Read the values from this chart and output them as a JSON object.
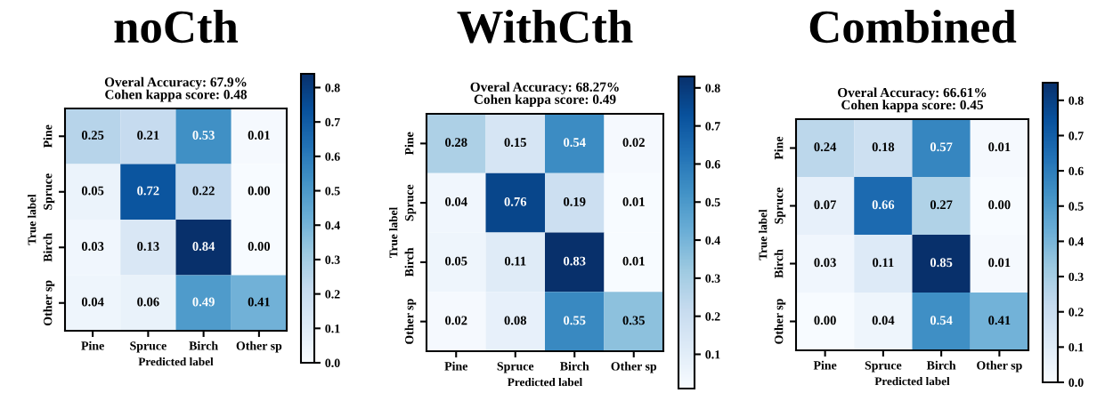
{
  "chart_data": [
    {
      "type": "heatmap",
      "title": "noCth",
      "subtitle": "Overal Accuracy: 67.9%\nCohen kappa score: 0.48",
      "xlabel": "Predicted label",
      "ylabel": "True label",
      "categories": [
        "Pine",
        "Spruce",
        "Birch",
        "Other sp"
      ],
      "y_categories": [
        "Pine",
        "Spruce",
        "Birch",
        "Other sp"
      ],
      "cells": [
        [
          0.25,
          0.21,
          0.53,
          0.01
        ],
        [
          0.05,
          0.72,
          0.22,
          0.0
        ],
        [
          0.03,
          0.13,
          0.84,
          0.0
        ],
        [
          0.04,
          0.06,
          0.49,
          0.41
        ]
      ],
      "cell_labels": [
        [
          "0.25",
          "0.21",
          "0.53",
          "0.01"
        ],
        [
          "0.05",
          "0.72",
          "0.22",
          "0.00"
        ],
        [
          "0.03",
          "0.13",
          "0.84",
          "0.00"
        ],
        [
          "0.04",
          "0.06",
          "0.49",
          "0.41"
        ]
      ],
      "clim": [
        0.0,
        0.84
      ],
      "cticks": [
        {
          "value": 0,
          "label": "0.0"
        },
        0.1,
        0.2,
        0.3,
        0.4,
        0.5,
        0.6,
        0.7,
        0.8
      ],
      "data_labels": true
    },
    {
      "type": "heatmap",
      "title": "WithCth",
      "subtitle": "Overal Accuracy: 68.27%\nCohen kappa score: 0.49",
      "xlabel": "Predicted label",
      "ylabel": "True label",
      "categories": [
        "Pine",
        "Spruce",
        "Birch",
        "Other sp"
      ],
      "y_categories": [
        "Pine",
        "Spruce",
        "Birch",
        "Other sp"
      ],
      "cells": [
        [
          0.28,
          0.15,
          0.54,
          0.02
        ],
        [
          0.04,
          0.76,
          0.19,
          0.01
        ],
        [
          0.05,
          0.11,
          0.83,
          0.01
        ],
        [
          0.02,
          0.08,
          0.55,
          0.35
        ]
      ],
      "clim": [
        0.01,
        0.83
      ],
      "cticks": [
        0.1,
        0.2,
        0.3,
        0.4,
        0.5,
        0.6,
        0.7,
        0.8
      ],
      "data_labels": true
    },
    {
      "type": "heatmap",
      "title": "Combined",
      "subtitle": "Overal Accuracy: 66.61%\nCohen kappa score: 0.45",
      "xlabel": "Predicted label",
      "ylabel": "True label",
      "categories": [
        "Pine",
        "Spruce",
        "Birch",
        "Other sp"
      ],
      "y_categories": [
        "Pine",
        "Spruce",
        "Birch",
        "Other sp"
      ],
      "cells": [
        [
          0.24,
          0.18,
          0.57,
          0.01
        ],
        [
          0.07,
          0.66,
          0.27,
          0.0
        ],
        [
          0.03,
          0.11,
          0.85,
          0.01
        ],
        [
          0.0,
          0.04,
          0.54,
          0.41
        ]
      ],
      "cell_labels": [
        [
          "0.24",
          "0.18",
          "0.57",
          "0.01"
        ],
        [
          "0.07",
          "0.66",
          "0.27",
          "0.00"
        ],
        [
          "0.03",
          "0.11",
          "0.85",
          "0.01"
        ],
        [
          "0.00",
          "0.04",
          "0.54",
          "0.41"
        ]
      ],
      "clim": [
        0.0,
        0.85
      ],
      "cticks": [
        {
          "value": 0,
          "label": "0.0"
        },
        0.1,
        0.2,
        0.3,
        0.4,
        0.5,
        0.6,
        0.7,
        0.8
      ],
      "data_labels": true
    }
  ]
}
